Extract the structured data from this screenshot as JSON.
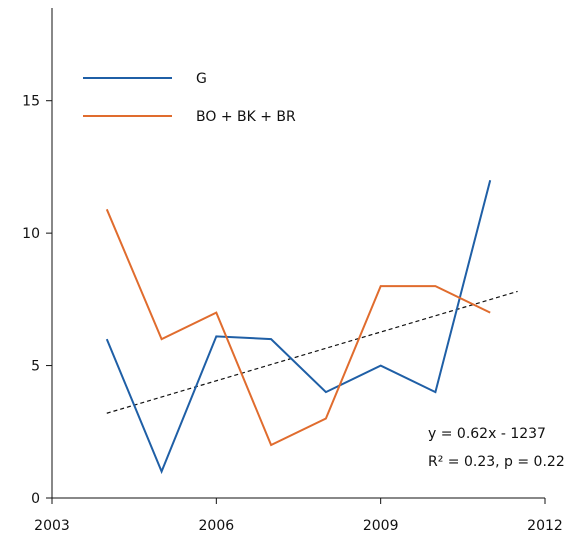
{
  "chart_data": {
    "type": "line",
    "x_ticks": [
      2003,
      2006,
      2009,
      2012
    ],
    "y_ticks": [
      0,
      5,
      10,
      15
    ],
    "xlim": [
      2003,
      2012
    ],
    "ylim": [
      0,
      18.5
    ],
    "grid": false,
    "legend_position": "top-left",
    "series": [
      {
        "name": "G",
        "color": "#1f5fa6",
        "x": [
          2004,
          2005,
          2006,
          2007,
          2008,
          2009,
          2010,
          2011
        ],
        "values": [
          6.0,
          1.0,
          6.1,
          6.0,
          4.0,
          5.0,
          4.0,
          12.0
        ]
      },
      {
        "name": "BO + BK + BR",
        "color": "#e06c2e",
        "x": [
          2004,
          2005,
          2006,
          2007,
          2008,
          2009,
          2010,
          2011
        ],
        "values": [
          10.9,
          6.0,
          7.0,
          2.0,
          3.0,
          8.0,
          8.0,
          7.0
        ]
      }
    ],
    "trendline": {
      "style": "dashed",
      "color": "#111111",
      "x": [
        2004,
        2011.5
      ],
      "y": [
        3.2,
        7.8
      ]
    },
    "annotation": {
      "line1": "y = 0.62x - 1237",
      "line2": "R² = 0.23, p = 0.22"
    }
  }
}
